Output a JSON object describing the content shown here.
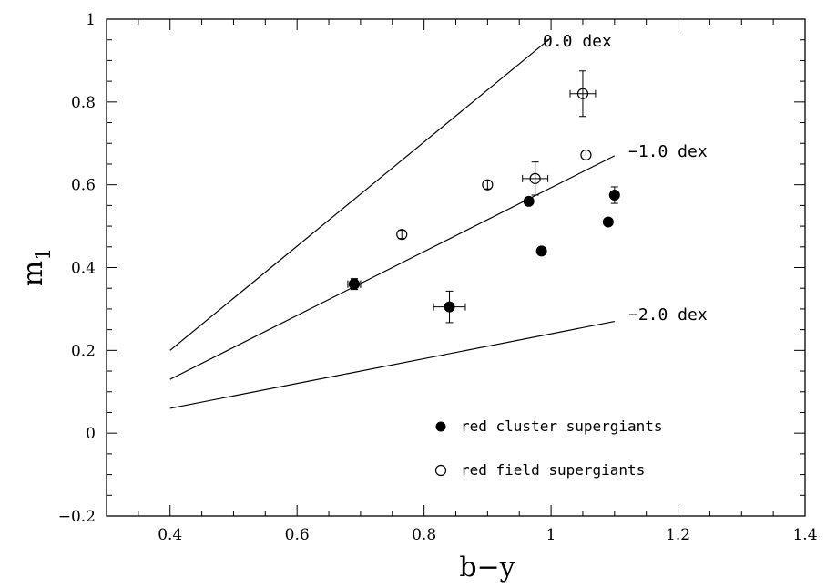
{
  "chart_data": {
    "type": "scatter",
    "xlabel": "b−y",
    "ylabel_main": "m",
    "ylabel_sub": "1",
    "xlim": [
      0.3,
      1.4
    ],
    "ylim": [
      -0.2,
      1.0
    ],
    "xticks": [
      {
        "value": 0.4,
        "label": "0.4"
      },
      {
        "value": 0.6,
        "label": "0.6"
      },
      {
        "value": 0.8,
        "label": "0.8"
      },
      {
        "value": 1.0,
        "label": "1"
      },
      {
        "value": 1.2,
        "label": "1.2"
      },
      {
        "value": 1.4,
        "label": "1.4"
      }
    ],
    "yticks": [
      {
        "value": -0.2,
        "label": "−0.2"
      },
      {
        "value": 0.0,
        "label": "0"
      },
      {
        "value": 0.2,
        "label": "0.2"
      },
      {
        "value": 0.4,
        "label": "0.4"
      },
      {
        "value": 0.6,
        "label": "0.6"
      },
      {
        "value": 0.8,
        "label": "0.8"
      },
      {
        "value": 1.0,
        "label": "1"
      }
    ],
    "grid": false,
    "legend_placement": "bottom-right",
    "lines": [
      {
        "label": "0.0 dex",
        "x": [
          0.4,
          1.0
        ],
        "y": [
          0.2,
          0.955
        ]
      },
      {
        "label": "−1.0 dex",
        "x": [
          0.4,
          1.1
        ],
        "y": [
          0.13,
          0.67
        ]
      },
      {
        "label": "−2.0 dex",
        "x": [
          0.4,
          1.1
        ],
        "y": [
          0.06,
          0.27
        ]
      }
    ],
    "series": [
      {
        "name": "red cluster supergiants",
        "marker": "filled-circle",
        "points": [
          {
            "x": 0.69,
            "y": 0.36,
            "xerr": 0.01,
            "yerr": 0.013
          },
          {
            "x": 0.84,
            "y": 0.305,
            "xerr": 0.025,
            "yerr": 0.038
          },
          {
            "x": 0.965,
            "y": 0.56,
            "xerr": 0.0,
            "yerr": 0.0
          },
          {
            "x": 0.985,
            "y": 0.44,
            "xerr": 0.0,
            "yerr": 0.0
          },
          {
            "x": 1.09,
            "y": 0.51,
            "xerr": 0.0,
            "yerr": 0.0
          },
          {
            "x": 1.1,
            "y": 0.575,
            "xerr": 0.0,
            "yerr": 0.02
          }
        ]
      },
      {
        "name": "red field supergiants",
        "marker": "open-circle",
        "points": [
          {
            "x": 0.69,
            "y": 0.36,
            "xerr": 0.01,
            "yerr": 0.013
          },
          {
            "x": 0.765,
            "y": 0.48,
            "xerr": 0.0,
            "yerr": 0.01
          },
          {
            "x": 0.9,
            "y": 0.6,
            "xerr": 0.0,
            "yerr": 0.01
          },
          {
            "x": 0.975,
            "y": 0.615,
            "xerr": 0.02,
            "yerr": 0.04
          },
          {
            "x": 1.05,
            "y": 0.82,
            "xerr": 0.02,
            "yerr": 0.055
          },
          {
            "x": 1.055,
            "y": 0.672,
            "xerr": 0.0,
            "yerr": 0.012
          }
        ]
      }
    ]
  }
}
